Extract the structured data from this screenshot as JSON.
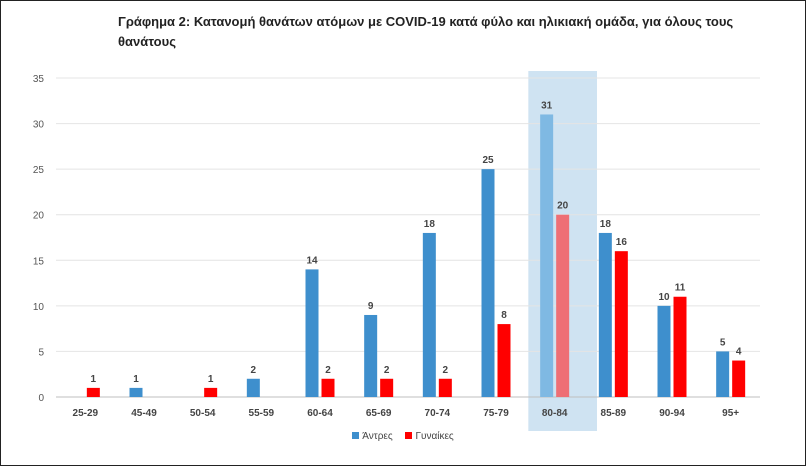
{
  "chart_data": {
    "type": "bar",
    "title": "Γράφημα 2: Κατανομή θανάτων ατόμων με COVID-19 κατά φύλο και ηλικιακή ομάδα, για όλους τους θανάτους",
    "xlabel": "",
    "ylabel": "",
    "categories": [
      "25-29",
      "45-49",
      "50-54",
      "55-59",
      "60-64",
      "65-69",
      "70-74",
      "75-79",
      "80-84",
      "85-89",
      "90-94",
      "95+"
    ],
    "series": [
      {
        "name": "Άντρες",
        "color": "#3e8fcd",
        "values": [
          0,
          1,
          0,
          2,
          14,
          9,
          18,
          25,
          31,
          18,
          10,
          5
        ]
      },
      {
        "name": "Γυναίκες",
        "color": "#ff0000",
        "values": [
          1,
          0,
          1,
          0,
          2,
          2,
          2,
          8,
          20,
          16,
          11,
          4
        ]
      }
    ],
    "ylim": [
      0,
      35
    ],
    "yticks": [
      0,
      5,
      10,
      15,
      20,
      25,
      30,
      35
    ],
    "highlight_category": "80-84",
    "highlight_color": "#cfe3f2",
    "grid": true,
    "legend_position": "bottom-center"
  }
}
